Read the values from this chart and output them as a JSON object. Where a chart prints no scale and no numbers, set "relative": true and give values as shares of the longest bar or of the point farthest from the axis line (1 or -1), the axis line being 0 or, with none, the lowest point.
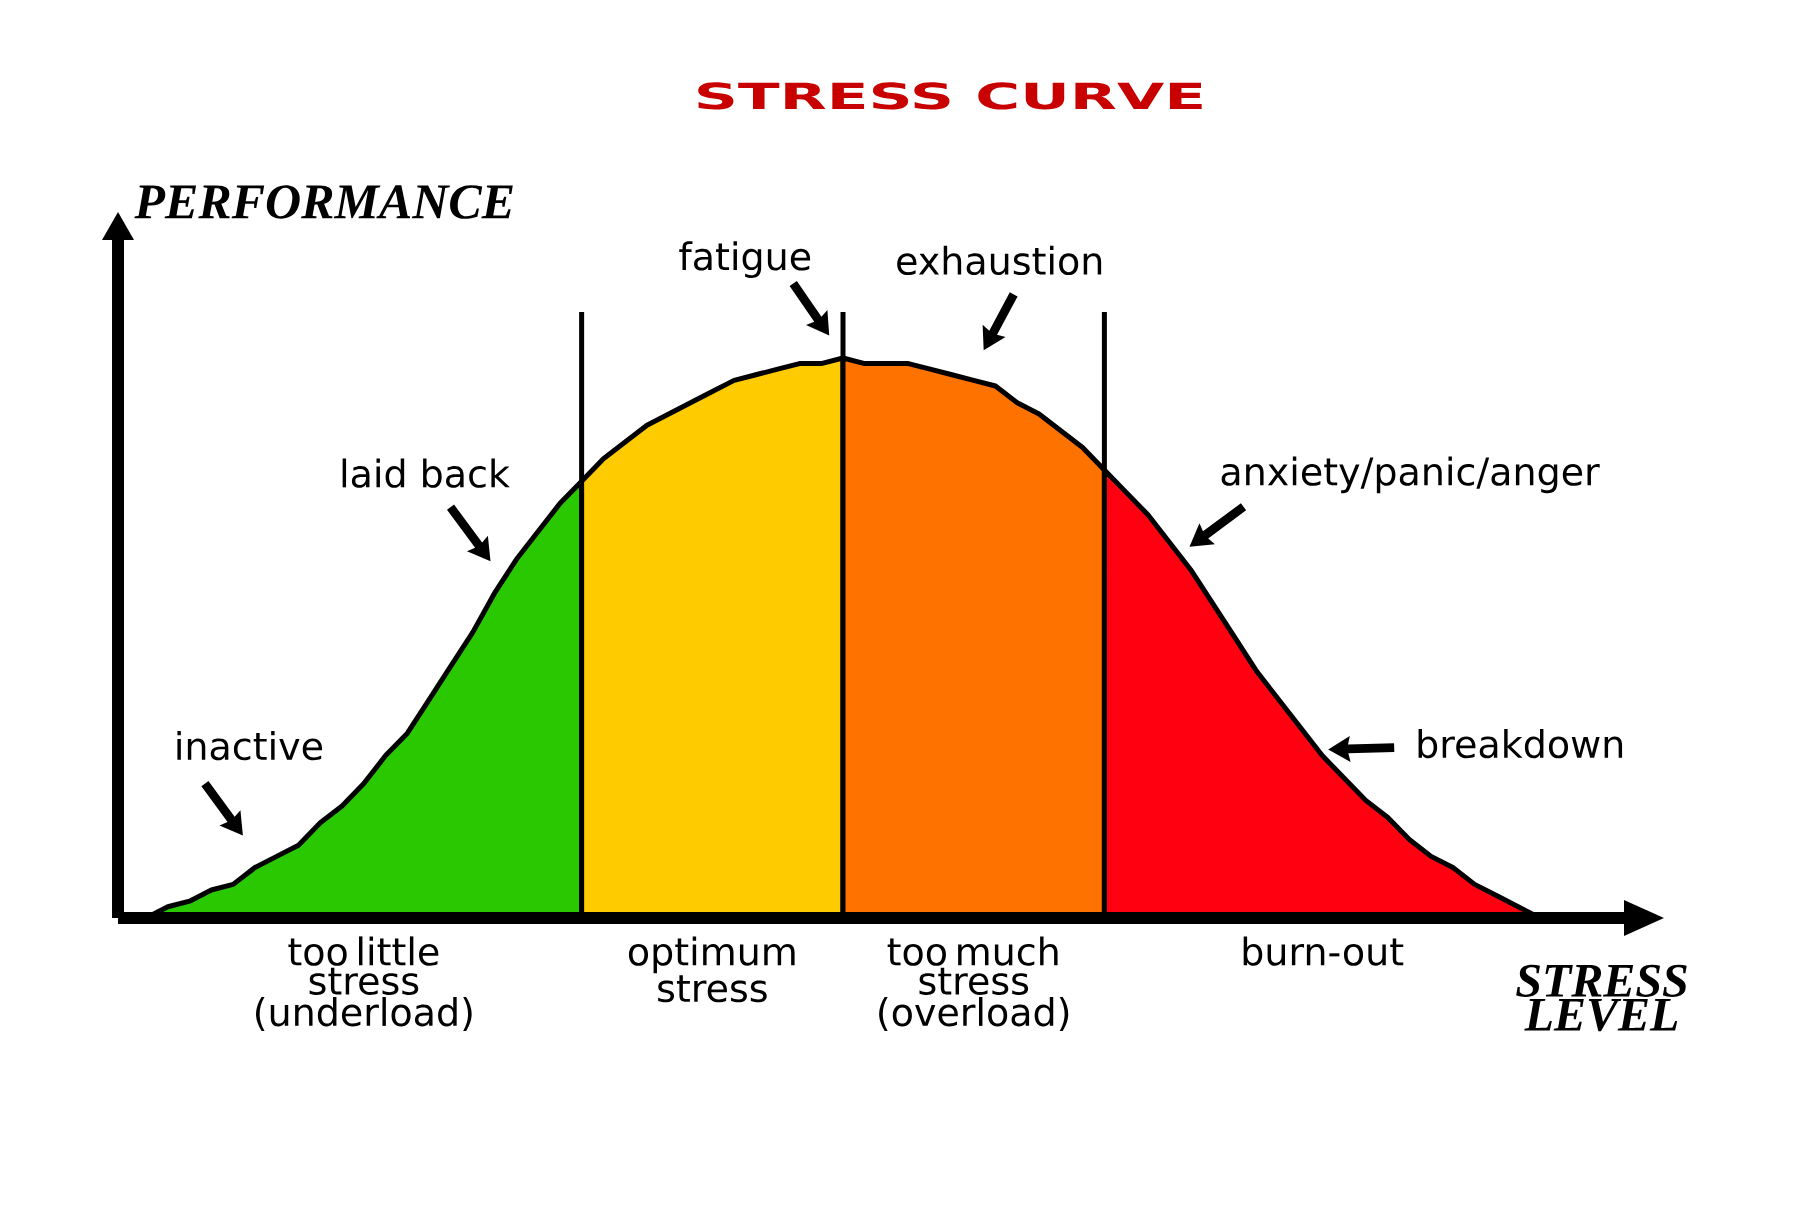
{
  "chart_data": {
    "type": "area",
    "title": "STRESS CURVE",
    "xlabel": "STRESS LEVEL",
    "ylabel": "PERFORMANCE",
    "relative": true,
    "categories": [
      null,
      null,
      null,
      null,
      null,
      null,
      null,
      null,
      null,
      null,
      null,
      null,
      null,
      null,
      null,
      null,
      null,
      null,
      null,
      null,
      null,
      null,
      null,
      null,
      null,
      null,
      null,
      null,
      null,
      null,
      null,
      null,
      null,
      null,
      null,
      null,
      null,
      null,
      null,
      null,
      null,
      null,
      null,
      null,
      null,
      null,
      null,
      null,
      null,
      null,
      null,
      null,
      null,
      null,
      null,
      null,
      null,
      null,
      null,
      null,
      null,
      null,
      null,
      null,
      null
    ],
    "series": [
      {
        "name": "too little stress (underload)",
        "color": "#2ac800",
        "values": [
          0,
          0.02,
          0.03,
          0.05,
          0.06,
          0.09,
          0.11,
          0.13,
          0.17,
          0.2,
          0.24,
          0.29,
          0.33,
          0.39,
          0.45,
          0.51,
          0.58,
          0.64,
          0.69,
          0.74,
          0.78,
          null,
          null,
          null,
          null,
          null,
          null,
          null,
          null,
          null,
          null,
          null,
          null,
          null,
          null,
          null,
          null,
          null,
          null,
          null,
          null,
          null,
          null,
          null,
          null,
          null,
          null,
          null,
          null,
          null,
          null,
          null,
          null,
          null,
          null,
          null,
          null,
          null,
          null,
          null,
          null,
          null,
          null,
          null,
          null
        ]
      },
      {
        "name": "optimum stress",
        "color": "#fecb00",
        "values": [
          null,
          null,
          null,
          null,
          null,
          null,
          null,
          null,
          null,
          null,
          null,
          null,
          null,
          null,
          null,
          null,
          null,
          null,
          null,
          null,
          0.78,
          0.82,
          0.85,
          0.88,
          0.9,
          0.92,
          0.94,
          0.96,
          0.97,
          0.98,
          0.99,
          0.99,
          1,
          null,
          null,
          null,
          null,
          null,
          null,
          null,
          null,
          null,
          null,
          null,
          null,
          null,
          null,
          null,
          null,
          null,
          null,
          null,
          null,
          null,
          null,
          null,
          null,
          null,
          null,
          null,
          null,
          null,
          null,
          null,
          null
        ]
      },
      {
        "name": "too much stress (overload)",
        "color": "#fe7200",
        "values": [
          null,
          null,
          null,
          null,
          null,
          null,
          null,
          null,
          null,
          null,
          null,
          null,
          null,
          null,
          null,
          null,
          null,
          null,
          null,
          null,
          null,
          null,
          null,
          null,
          null,
          null,
          null,
          null,
          null,
          null,
          null,
          null,
          1,
          0.99,
          0.99,
          0.99,
          0.98,
          0.97,
          0.96,
          0.95,
          0.92,
          0.9,
          0.87,
          0.84,
          0.8,
          null,
          null,
          null,
          null,
          null,
          null,
          null,
          null,
          null,
          null,
          null,
          null,
          null,
          null,
          null,
          null,
          null,
          null,
          null,
          null
        ]
      },
      {
        "name": "burn-out",
        "color": "#fe0010",
        "values": [
          null,
          null,
          null,
          null,
          null,
          null,
          null,
          null,
          null,
          null,
          null,
          null,
          null,
          null,
          null,
          null,
          null,
          null,
          null,
          null,
          null,
          null,
          null,
          null,
          null,
          null,
          null,
          null,
          null,
          null,
          null,
          null,
          null,
          null,
          null,
          null,
          null,
          null,
          null,
          null,
          null,
          null,
          null,
          null,
          0.8,
          0.76,
          0.72,
          0.67,
          0.62,
          0.56,
          0.5,
          0.44,
          0.39,
          0.34,
          0.29,
          0.25,
          0.21,
          0.18,
          0.14,
          0.11,
          0.09,
          0.06,
          0.04,
          0.02,
          0
        ]
      }
    ],
    "annotations": [
      "inactive",
      "laid back",
      "fatigue",
      "exhaustion",
      "anxiety/panic/anger",
      "breakdown"
    ]
  }
}
